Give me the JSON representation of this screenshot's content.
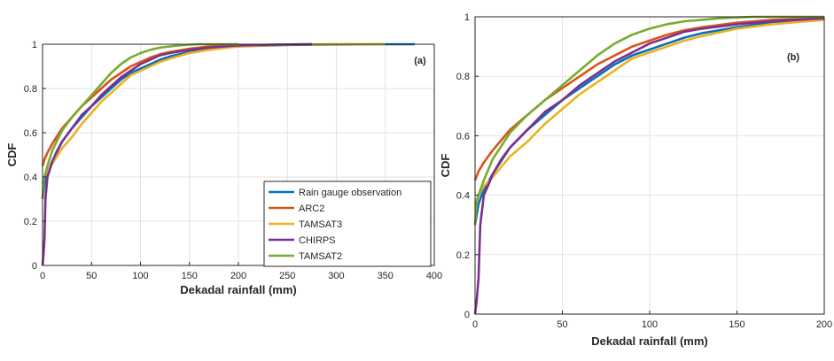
{
  "chart_data": [
    {
      "type": "line",
      "panel_label": "(a)",
      "xlabel": "Dekadal rainfall (mm)",
      "ylabel": "CDF",
      "xlim": [
        0,
        400
      ],
      "ylim": [
        0,
        1
      ],
      "xticks": [
        0,
        50,
        100,
        150,
        200,
        250,
        300,
        350,
        400
      ],
      "yticks": [
        0,
        0.2,
        0.4,
        0.6,
        0.8,
        1
      ],
      "grid": true,
      "legend_position": "bottom-right",
      "series": [
        {
          "name": "Rain gauge observation",
          "color": "#0072BD",
          "x": [
            0,
            2,
            5,
            10,
            20,
            30,
            40,
            50,
            60,
            70,
            80,
            90,
            100,
            110,
            120,
            130,
            150,
            170,
            200,
            250,
            300,
            350,
            380
          ],
          "y": [
            0.3,
            0.37,
            0.42,
            0.47,
            0.56,
            0.62,
            0.67,
            0.72,
            0.76,
            0.8,
            0.84,
            0.87,
            0.89,
            0.91,
            0.93,
            0.945,
            0.965,
            0.98,
            0.99,
            0.997,
            0.999,
            1.0,
            1.0
          ]
        },
        {
          "name": "ARC2",
          "color": "#D95319",
          "x": [
            0,
            2,
            5,
            10,
            20,
            30,
            40,
            50,
            60,
            70,
            80,
            90,
            100,
            110,
            120,
            130,
            150,
            170,
            200,
            250,
            275
          ],
          "y": [
            0.45,
            0.48,
            0.51,
            0.55,
            0.62,
            0.67,
            0.72,
            0.76,
            0.8,
            0.84,
            0.87,
            0.9,
            0.92,
            0.94,
            0.955,
            0.965,
            0.98,
            0.99,
            0.995,
            0.999,
            1.0
          ]
        },
        {
          "name": "TAMSAT3",
          "color": "#EDB120",
          "x": [
            0,
            2,
            5,
            10,
            20,
            30,
            40,
            50,
            60,
            70,
            80,
            90,
            100,
            110,
            120,
            130,
            150,
            170,
            200,
            250,
            300,
            350
          ],
          "y": [
            0.37,
            0.4,
            0.43,
            0.46,
            0.53,
            0.58,
            0.64,
            0.69,
            0.74,
            0.78,
            0.82,
            0.86,
            0.88,
            0.9,
            0.92,
            0.935,
            0.96,
            0.975,
            0.99,
            0.998,
            1.0,
            1.0
          ]
        },
        {
          "name": "CHIRPS",
          "color": "#7E2F8E",
          "x": [
            0,
            1,
            2,
            3,
            5,
            8,
            10,
            15,
            20,
            30,
            40,
            50,
            60,
            70,
            80,
            90,
            100,
            110,
            120,
            130,
            150,
            170,
            200,
            250,
            275
          ],
          "y": [
            0.0,
            0.05,
            0.12,
            0.3,
            0.4,
            0.44,
            0.47,
            0.52,
            0.56,
            0.62,
            0.68,
            0.72,
            0.77,
            0.81,
            0.85,
            0.88,
            0.91,
            0.93,
            0.95,
            0.96,
            0.975,
            0.985,
            0.995,
            0.999,
            1.0
          ]
        },
        {
          "name": "TAMSAT2",
          "color": "#77AC30",
          "x": [
            0,
            1,
            2,
            5,
            10,
            20,
            30,
            40,
            50,
            60,
            70,
            80,
            90,
            100,
            110,
            120,
            130,
            140,
            150,
            160,
            170,
            200
          ],
          "y": [
            0.3,
            0.38,
            0.4,
            0.45,
            0.52,
            0.61,
            0.67,
            0.72,
            0.77,
            0.82,
            0.87,
            0.91,
            0.94,
            0.96,
            0.975,
            0.985,
            0.99,
            0.995,
            0.998,
            1.0,
            1.0,
            1.0
          ]
        }
      ]
    },
    {
      "type": "line",
      "panel_label": "(b)",
      "xlabel": "Dekadal rainfall (mm)",
      "ylabel": "CDF",
      "xlim": [
        0,
        200
      ],
      "ylim": [
        0,
        1
      ],
      "xticks": [
        0,
        50,
        100,
        150,
        200
      ],
      "yticks": [
        0,
        0.2,
        0.4,
        0.6,
        0.8,
        1
      ],
      "grid": true,
      "legend_position": "none",
      "series": [
        {
          "name": "Rain gauge observation",
          "color": "#0072BD",
          "x": [
            0,
            2,
            5,
            10,
            20,
            30,
            40,
            50,
            60,
            70,
            80,
            90,
            100,
            110,
            120,
            130,
            150,
            170,
            200
          ],
          "y": [
            0.3,
            0.37,
            0.42,
            0.47,
            0.56,
            0.62,
            0.67,
            0.72,
            0.76,
            0.8,
            0.84,
            0.87,
            0.89,
            0.91,
            0.93,
            0.945,
            0.965,
            0.98,
            0.99
          ]
        },
        {
          "name": "ARC2",
          "color": "#D95319",
          "x": [
            0,
            2,
            5,
            10,
            20,
            30,
            40,
            50,
            60,
            70,
            80,
            90,
            100,
            110,
            120,
            130,
            150,
            170,
            200
          ],
          "y": [
            0.45,
            0.48,
            0.51,
            0.55,
            0.62,
            0.67,
            0.72,
            0.76,
            0.8,
            0.84,
            0.87,
            0.9,
            0.92,
            0.94,
            0.955,
            0.965,
            0.98,
            0.99,
            0.995
          ]
        },
        {
          "name": "TAMSAT3",
          "color": "#EDB120",
          "x": [
            0,
            2,
            5,
            10,
            20,
            30,
            40,
            50,
            60,
            70,
            80,
            90,
            100,
            110,
            120,
            130,
            150,
            170,
            200
          ],
          "y": [
            0.37,
            0.4,
            0.43,
            0.46,
            0.53,
            0.58,
            0.64,
            0.69,
            0.74,
            0.78,
            0.82,
            0.86,
            0.88,
            0.9,
            0.92,
            0.935,
            0.96,
            0.975,
            0.99
          ]
        },
        {
          "name": "CHIRPS",
          "color": "#7E2F8E",
          "x": [
            0,
            1,
            2,
            3,
            5,
            8,
            10,
            15,
            20,
            30,
            40,
            50,
            60,
            70,
            80,
            90,
            100,
            110,
            120,
            130,
            150,
            170,
            200
          ],
          "y": [
            0.0,
            0.05,
            0.12,
            0.3,
            0.4,
            0.44,
            0.47,
            0.52,
            0.56,
            0.62,
            0.68,
            0.72,
            0.77,
            0.81,
            0.85,
            0.88,
            0.91,
            0.93,
            0.95,
            0.96,
            0.975,
            0.985,
            0.995
          ]
        },
        {
          "name": "TAMSAT2",
          "color": "#77AC30",
          "x": [
            0,
            1,
            2,
            5,
            10,
            20,
            30,
            40,
            50,
            60,
            70,
            80,
            90,
            100,
            110,
            120,
            130,
            140,
            150,
            160,
            170,
            200
          ],
          "y": [
            0.3,
            0.38,
            0.4,
            0.45,
            0.52,
            0.61,
            0.67,
            0.72,
            0.77,
            0.82,
            0.87,
            0.91,
            0.94,
            0.96,
            0.975,
            0.985,
            0.99,
            0.995,
            0.998,
            1.0,
            1.0,
            1.0
          ]
        }
      ]
    }
  ]
}
